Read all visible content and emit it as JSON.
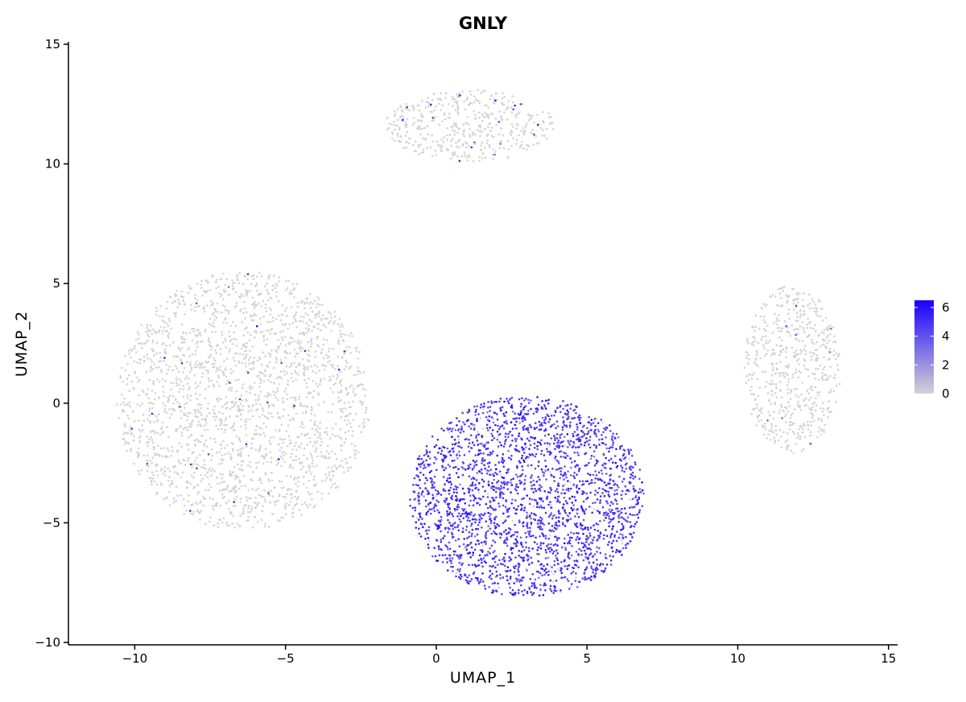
{
  "chart_data": {
    "type": "scatter",
    "title": "GNLY",
    "xlabel": "UMAP_1",
    "ylabel": "UMAP_2",
    "xlim": [
      -12.2,
      15.3
    ],
    "ylim": [
      -10.1,
      15.1
    ],
    "x_ticks": [
      -10,
      -5,
      0,
      5,
      10,
      15
    ],
    "y_ticks": [
      -10,
      -5,
      0,
      5,
      10,
      15
    ],
    "x_tick_labels": [
      "−10",
      "−5",
      "0",
      "5",
      "10",
      "15"
    ],
    "y_tick_labels": [
      "−10",
      "−5",
      "0",
      "5",
      "10",
      "15"
    ],
    "grid": false,
    "color_scale": {
      "low_color": "#d3d3d3",
      "high_color": "#1a00ff",
      "min": 0,
      "max": 6.5,
      "legend_ticks": [
        0,
        2,
        4,
        6
      ],
      "legend_tick_labels": [
        "0",
        "2",
        "4",
        "6"
      ],
      "legend_position": "right"
    },
    "clusters": [
      {
        "cx": 1.1,
        "cy": 11.6,
        "rx": 2.8,
        "ry": 1.5,
        "n": 450,
        "expr_frac": 0.03,
        "expr_mean": 4.5
      },
      {
        "cx": -6.4,
        "cy": 0.1,
        "rx": 4.2,
        "ry": 5.4,
        "n": 2200,
        "expr_frac": 0.015,
        "expr_mean": 4.5
      },
      {
        "cx": 11.8,
        "cy": 1.4,
        "rx": 1.6,
        "ry": 3.5,
        "n": 600,
        "expr_frac": 0.01,
        "expr_mean": 4.0
      },
      {
        "cx": 3.0,
        "cy": -3.9,
        "rx": 3.9,
        "ry": 4.2,
        "n": 2400,
        "expr_frac": 0.96,
        "expr_mean": 4.8
      }
    ]
  }
}
